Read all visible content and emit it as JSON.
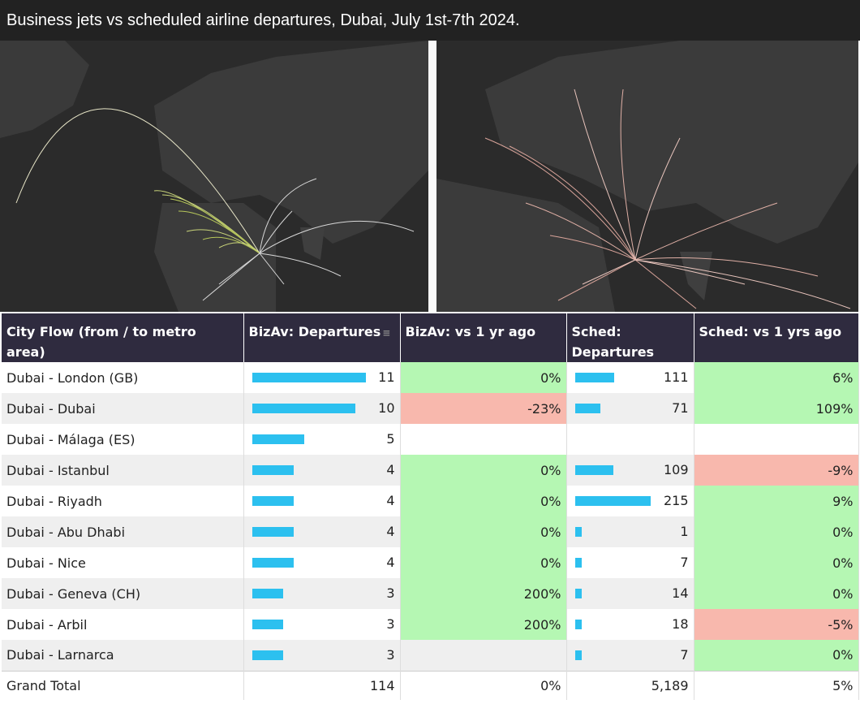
{
  "title": "Business jets vs scheduled airline departures, Dubai, July 1st-7th 2024.",
  "table": {
    "headers": {
      "city": "City Flow (from / to metro area)",
      "bizav_dep": "BizAv: Departures",
      "bizav_yoy": "BizAv: vs 1 yr ago",
      "sched_dep": "Sched: Departures",
      "sched_yoy": "Sched: vs 1 yrs ago"
    },
    "bizav_max": 11,
    "sched_max": 215,
    "rows": [
      {
        "city": "Dubai - London (GB)",
        "bizav_dep": "11",
        "bizav_dep_value": 11,
        "bizav_yoy": "0%",
        "bizav_yoy_status": "pos",
        "sched_dep": "111",
        "sched_dep_value": 111,
        "sched_yoy": "6%",
        "sched_yoy_status": "pos"
      },
      {
        "city": "Dubai - Dubai",
        "bizav_dep": "10",
        "bizav_dep_value": 10,
        "bizav_yoy": "-23%",
        "bizav_yoy_status": "neg",
        "sched_dep": "71",
        "sched_dep_value": 71,
        "sched_yoy": "109%",
        "sched_yoy_status": "pos"
      },
      {
        "city": "Dubai - Málaga (ES)",
        "bizav_dep": "5",
        "bizav_dep_value": 5,
        "bizav_yoy": "",
        "bizav_yoy_status": "none",
        "sched_dep": "",
        "sched_dep_value": 0,
        "sched_yoy": "",
        "sched_yoy_status": "none"
      },
      {
        "city": "Dubai - Istanbul",
        "bizav_dep": "4",
        "bizav_dep_value": 4,
        "bizav_yoy": "0%",
        "bizav_yoy_status": "pos",
        "sched_dep": "109",
        "sched_dep_value": 109,
        "sched_yoy": "-9%",
        "sched_yoy_status": "neg"
      },
      {
        "city": "Dubai - Riyadh",
        "bizav_dep": "4",
        "bizav_dep_value": 4,
        "bizav_yoy": "0%",
        "bizav_yoy_status": "pos",
        "sched_dep": "215",
        "sched_dep_value": 215,
        "sched_yoy": "9%",
        "sched_yoy_status": "pos"
      },
      {
        "city": "Dubai - Abu Dhabi",
        "bizav_dep": "4",
        "bizav_dep_value": 4,
        "bizav_yoy": "0%",
        "bizav_yoy_status": "pos",
        "sched_dep": "1",
        "sched_dep_value": 1,
        "sched_yoy": "0%",
        "sched_yoy_status": "pos"
      },
      {
        "city": "Dubai - Nice",
        "bizav_dep": "4",
        "bizav_dep_value": 4,
        "bizav_yoy": "0%",
        "bizav_yoy_status": "pos",
        "sched_dep": "7",
        "sched_dep_value": 7,
        "sched_yoy": "0%",
        "sched_yoy_status": "pos"
      },
      {
        "city": "Dubai - Geneva (CH)",
        "bizav_dep": "3",
        "bizav_dep_value": 3,
        "bizav_yoy": "200%",
        "bizav_yoy_status": "pos",
        "sched_dep": "14",
        "sched_dep_value": 14,
        "sched_yoy": "0%",
        "sched_yoy_status": "pos"
      },
      {
        "city": "Dubai - Arbil",
        "bizav_dep": "3",
        "bizav_dep_value": 3,
        "bizav_yoy": "200%",
        "bizav_yoy_status": "pos",
        "sched_dep": "18",
        "sched_dep_value": 18,
        "sched_yoy": "-5%",
        "sched_yoy_status": "neg"
      },
      {
        "city": "Dubai - Larnarca",
        "bizav_dep": "3",
        "bizav_dep_value": 3,
        "bizav_yoy": "",
        "bizav_yoy_status": "none",
        "sched_dep": "7",
        "sched_dep_value": 7,
        "sched_yoy": "0%",
        "sched_yoy_status": "pos"
      }
    ],
    "total": {
      "city": "Grand Total",
      "bizav_dep": "114",
      "bizav_yoy": "0%",
      "sched_dep": "5,189",
      "sched_yoy": "5%"
    }
  },
  "colors": {
    "bar": "#2cc0ef",
    "positive": "#b5f7b3",
    "negative": "#f8b8ad",
    "header": "#2f2b3f"
  },
  "icons": {
    "sort": "sort-icon"
  }
}
